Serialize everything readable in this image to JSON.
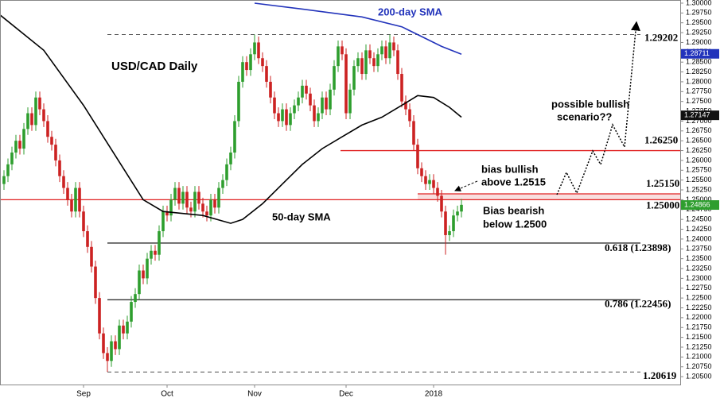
{
  "chart_data": {
    "type": "candlestick",
    "title": "USD/CAD Daily",
    "up_color": "#2e9e2e",
    "down_color": "#cc2222",
    "open": [
      1.254,
      1.256,
      1.259,
      1.262,
      1.265,
      1.263,
      1.268,
      1.272,
      1.269,
      1.276,
      1.273,
      1.27,
      1.266,
      1.264,
      1.26,
      1.256,
      1.253,
      1.25,
      1.247,
      1.253,
      1.247,
      1.242,
      1.238,
      1.233,
      1.225,
      1.216,
      1.211,
      1.209,
      1.214,
      1.212,
      1.218,
      1.216,
      1.219,
      1.224,
      1.226,
      1.232,
      1.23,
      1.235,
      1.237,
      1.236,
      1.242,
      1.247,
      1.246,
      1.25,
      1.253,
      1.249,
      1.252,
      1.248,
      1.247,
      1.252,
      1.249,
      1.247,
      1.246,
      1.25,
      1.248,
      1.253,
      1.255,
      1.259,
      1.262,
      1.27,
      1.28,
      1.285,
      1.283,
      1.287,
      1.29,
      1.286,
      1.284,
      1.28,
      1.276,
      1.272,
      1.27,
      1.273,
      1.269,
      1.272,
      1.274,
      1.276,
      1.279,
      1.277,
      1.274,
      1.27,
      1.272,
      1.276,
      1.273,
      1.278,
      1.284,
      1.289,
      1.287,
      1.272,
      1.278,
      1.284,
      1.286,
      1.282,
      1.288,
      1.286,
      1.284,
      1.287,
      1.289,
      1.286,
      1.29,
      1.288,
      1.282,
      1.275,
      1.273,
      1.27,
      1.264,
      1.258,
      1.256,
      1.254,
      1.255,
      1.253,
      1.251,
      1.247,
      1.241,
      1.242,
      1.246,
      1.247
    ],
    "high": [
      1.2575,
      1.2605,
      1.2635,
      1.2665,
      1.2665,
      1.2695,
      1.2735,
      1.2735,
      1.2775,
      1.2775,
      1.2745,
      1.2715,
      1.2675,
      1.2655,
      1.2615,
      1.2575,
      1.2545,
      1.2515,
      1.2545,
      1.2545,
      1.2485,
      1.2435,
      1.2395,
      1.2345,
      1.2265,
      1.2175,
      1.2125,
      1.2155,
      1.2155,
      1.2195,
      1.2195,
      1.2205,
      1.2255,
      1.2275,
      1.2335,
      1.2335,
      1.2365,
      1.2385,
      1.2385,
      1.2435,
      1.2485,
      1.2485,
      1.2515,
      1.2545,
      1.2545,
      1.2535,
      1.2535,
      1.2495,
      1.2535,
      1.2535,
      1.2505,
      1.2485,
      1.2515,
      1.2515,
      1.2545,
      1.2565,
      1.2605,
      1.2635,
      1.2715,
      1.2815,
      1.2865,
      1.2865,
      1.2885,
      1.292,
      1.2915,
      1.2875,
      1.2855,
      1.2815,
      1.2775,
      1.2735,
      1.2745,
      1.2745,
      1.2735,
      1.2755,
      1.2775,
      1.2805,
      1.2805,
      1.2785,
      1.2755,
      1.2735,
      1.2775,
      1.2775,
      1.2795,
      1.2855,
      1.2905,
      1.2905,
      1.2885,
      1.2795,
      1.2855,
      1.2875,
      1.2875,
      1.2895,
      1.2895,
      1.2875,
      1.2885,
      1.2905,
      1.2905,
      1.292,
      1.2915,
      1.2895,
      1.2835,
      1.2765,
      1.2745,
      1.2715,
      1.2655,
      1.2595,
      1.2575,
      1.2565,
      1.2565,
      1.2545,
      1.2525,
      1.2485,
      1.2435,
      1.2475,
      1.2485,
      1.2502
    ],
    "low": [
      1.2525,
      1.2545,
      1.2575,
      1.2605,
      1.2615,
      1.2615,
      1.2665,
      1.2675,
      1.2675,
      1.2715,
      1.2685,
      1.2645,
      1.2625,
      1.2585,
      1.2545,
      1.2515,
      1.2485,
      1.2455,
      1.2455,
      1.2455,
      1.2405,
      1.2365,
      1.2315,
      1.2235,
      1.2145,
      1.2095,
      1.2062,
      1.2075,
      1.2105,
      1.2105,
      1.2145,
      1.2145,
      1.2175,
      1.2225,
      1.2245,
      1.2285,
      1.2285,
      1.2335,
      1.2345,
      1.2345,
      1.2405,
      1.2445,
      1.2445,
      1.2485,
      1.2475,
      1.2475,
      1.2465,
      1.2455,
      1.2455,
      1.2475,
      1.2455,
      1.2445,
      1.2445,
      1.2465,
      1.2465,
      1.2515,
      1.2535,
      1.2575,
      1.2605,
      1.2685,
      1.2785,
      1.2815,
      1.2815,
      1.2855,
      1.2845,
      1.2825,
      1.2785,
      1.2745,
      1.2705,
      1.2685,
      1.2685,
      1.2675,
      1.2675,
      1.2705,
      1.2725,
      1.2745,
      1.2755,
      1.2725,
      1.2685,
      1.2685,
      1.2705,
      1.2715,
      1.2715,
      1.2765,
      1.2825,
      1.2855,
      1.2705,
      1.2705,
      1.2765,
      1.2825,
      1.2805,
      1.2805,
      1.2845,
      1.2825,
      1.2825,
      1.2855,
      1.2845,
      1.2845,
      1.2865,
      1.2805,
      1.2735,
      1.2715,
      1.2685,
      1.2625,
      1.2565,
      1.2545,
      1.2525,
      1.2525,
      1.2515,
      1.2495,
      1.2455,
      1.236,
      1.2395,
      1.2405,
      1.2445,
      1.2455
    ],
    "close": [
      1.256,
      1.259,
      1.262,
      1.265,
      1.263,
      1.268,
      1.272,
      1.269,
      1.276,
      1.273,
      1.27,
      1.266,
      1.264,
      1.26,
      1.256,
      1.253,
      1.25,
      1.247,
      1.253,
      1.247,
      1.242,
      1.238,
      1.233,
      1.225,
      1.216,
      1.211,
      1.209,
      1.214,
      1.212,
      1.218,
      1.216,
      1.219,
      1.224,
      1.226,
      1.232,
      1.23,
      1.235,
      1.237,
      1.236,
      1.242,
      1.247,
      1.246,
      1.25,
      1.253,
      1.249,
      1.252,
      1.248,
      1.247,
      1.252,
      1.249,
      1.247,
      1.246,
      1.25,
      1.248,
      1.253,
      1.255,
      1.259,
      1.262,
      1.27,
      1.28,
      1.285,
      1.283,
      1.287,
      1.29,
      1.286,
      1.284,
      1.28,
      1.276,
      1.272,
      1.27,
      1.273,
      1.269,
      1.272,
      1.274,
      1.276,
      1.279,
      1.277,
      1.274,
      1.27,
      1.272,
      1.276,
      1.273,
      1.278,
      1.284,
      1.289,
      1.287,
      1.272,
      1.278,
      1.284,
      1.286,
      1.282,
      1.288,
      1.286,
      1.284,
      1.287,
      1.289,
      1.286,
      1.29,
      1.288,
      1.282,
      1.275,
      1.273,
      1.27,
      1.264,
      1.258,
      1.256,
      1.254,
      1.255,
      1.253,
      1.251,
      1.247,
      1.241,
      1.242,
      1.246,
      1.247,
      1.2487
    ],
    "series": [
      {
        "name": "50-day SMA",
        "color": "#000000",
        "x": [
          -1,
          10,
          20,
          30,
          35,
          40,
          45,
          50,
          57,
          60,
          65,
          70,
          75,
          80,
          85,
          90,
          95,
          100,
          104,
          108,
          112,
          115
        ],
        "values": [
          1.297,
          1.288,
          1.274,
          1.258,
          1.25,
          1.247,
          1.2465,
          1.246,
          1.244,
          1.245,
          1.249,
          1.254,
          1.259,
          1.263,
          1.266,
          1.269,
          1.271,
          1.274,
          1.2765,
          1.276,
          1.2735,
          1.271
        ]
      },
      {
        "name": "200-day SMA",
        "color": "#2233bb",
        "x": [
          63,
          75,
          90,
          100,
          105,
          110,
          115
        ],
        "values": [
          1.3,
          1.2985,
          1.2965,
          1.294,
          1.2915,
          1.289,
          1.287
        ]
      }
    ],
    "levels": [
      {
        "value": 1.29202,
        "label": "1.29202",
        "color": "#555555",
        "dash": true
      },
      {
        "value": 1.2625,
        "label": "1.26250",
        "color": "#e02020",
        "dash": false
      },
      {
        "value": 1.2515,
        "label": "1.25150",
        "color": "#e02020",
        "dash": false
      },
      {
        "value": 1.25,
        "label": "1.25000",
        "color": "#e02020",
        "dash": false
      },
      {
        "value": 1.23898,
        "label": "0.618 (1.23898)",
        "color": "#333333",
        "dash": false
      },
      {
        "value": 1.22456,
        "label": "0.786 (1.22456)",
        "color": "#333333",
        "dash": false
      },
      {
        "value": 1.20619,
        "label": "1.20619",
        "color": "#555555",
        "dash": true
      }
    ],
    "price_tags": [
      {
        "value": 1.28711,
        "label": "1.28711",
        "color": "#2233bb"
      },
      {
        "value": 1.27147,
        "label": "1.27147",
        "color": "#111111"
      },
      {
        "value": 1.24866,
        "label": "1.24866",
        "color": "#2e9e2e"
      }
    ],
    "annotations": [
      "200-day SMA",
      "50-day SMA",
      "bias bullish",
      "above 1.2515",
      "Bias bearish",
      "below 1.2500",
      "possible bullish",
      "scenario??"
    ],
    "xlim": [
      -1,
      170
    ],
    "xticks": [
      {
        "value": 20,
        "label": "Sep"
      },
      {
        "value": 41,
        "label": "Oct"
      },
      {
        "value": 63,
        "label": "Nov"
      },
      {
        "value": 86,
        "label": "Dec"
      },
      {
        "value": 108,
        "label": "2018"
      }
    ],
    "ylim": [
      1.203,
      1.3008
    ],
    "yticks": [
      {
        "value": 1.3,
        "label": "1.30000"
      },
      {
        "value": 1.2975,
        "label": "1.29750"
      },
      {
        "value": 1.295,
        "label": "1.29500"
      },
      {
        "value": 1.2925,
        "label": "1.29250"
      },
      {
        "value": 1.29,
        "label": "1.29000"
      },
      {
        "value": 1.2875,
        "label": "1.28750"
      },
      {
        "value": 1.285,
        "label": "1.28500"
      },
      {
        "value": 1.2825,
        "label": "1.28250"
      },
      {
        "value": 1.28,
        "label": "1.28000"
      },
      {
        "value": 1.2775,
        "label": "1.27750"
      },
      {
        "value": 1.275,
        "label": "1.27500"
      },
      {
        "value": 1.2725,
        "label": "1.27250"
      },
      {
        "value": 1.27,
        "label": "1.27000"
      },
      {
        "value": 1.2675,
        "label": "1.26750"
      },
      {
        "value": 1.265,
        "label": "1.26500"
      },
      {
        "value": 1.2625,
        "label": "1.26250"
      },
      {
        "value": 1.26,
        "label": "1.26000"
      },
      {
        "value": 1.2575,
        "label": "1.25750"
      },
      {
        "value": 1.255,
        "label": "1.25500"
      },
      {
        "value": 1.2525,
        "label": "1.25250"
      },
      {
        "value": 1.25,
        "label": "1.25000"
      },
      {
        "value": 1.2475,
        "label": "1.24750"
      },
      {
        "value": 1.245,
        "label": "1.24500"
      },
      {
        "value": 1.2425,
        "label": "1.24250"
      },
      {
        "value": 1.24,
        "label": "1.24000"
      },
      {
        "value": 1.2375,
        "label": "1.23750"
      },
      {
        "value": 1.235,
        "label": "1.23500"
      },
      {
        "value": 1.2325,
        "label": "1.23250"
      },
      {
        "value": 1.23,
        "label": "1.23000"
      },
      {
        "value": 1.2275,
        "label": "1.22750"
      },
      {
        "value": 1.225,
        "label": "1.22500"
      },
      {
        "value": 1.2225,
        "label": "1.22250"
      },
      {
        "value": 1.22,
        "label": "1.22000"
      },
      {
        "value": 1.2175,
        "label": "1.21750"
      },
      {
        "value": 1.215,
        "label": "1.21500"
      },
      {
        "value": 1.2125,
        "label": "1.21250"
      },
      {
        "value": 1.21,
        "label": "1.21000"
      },
      {
        "value": 1.2075,
        "label": "1.20750"
      },
      {
        "value": 1.205,
        "label": "1.20500"
      }
    ]
  }
}
